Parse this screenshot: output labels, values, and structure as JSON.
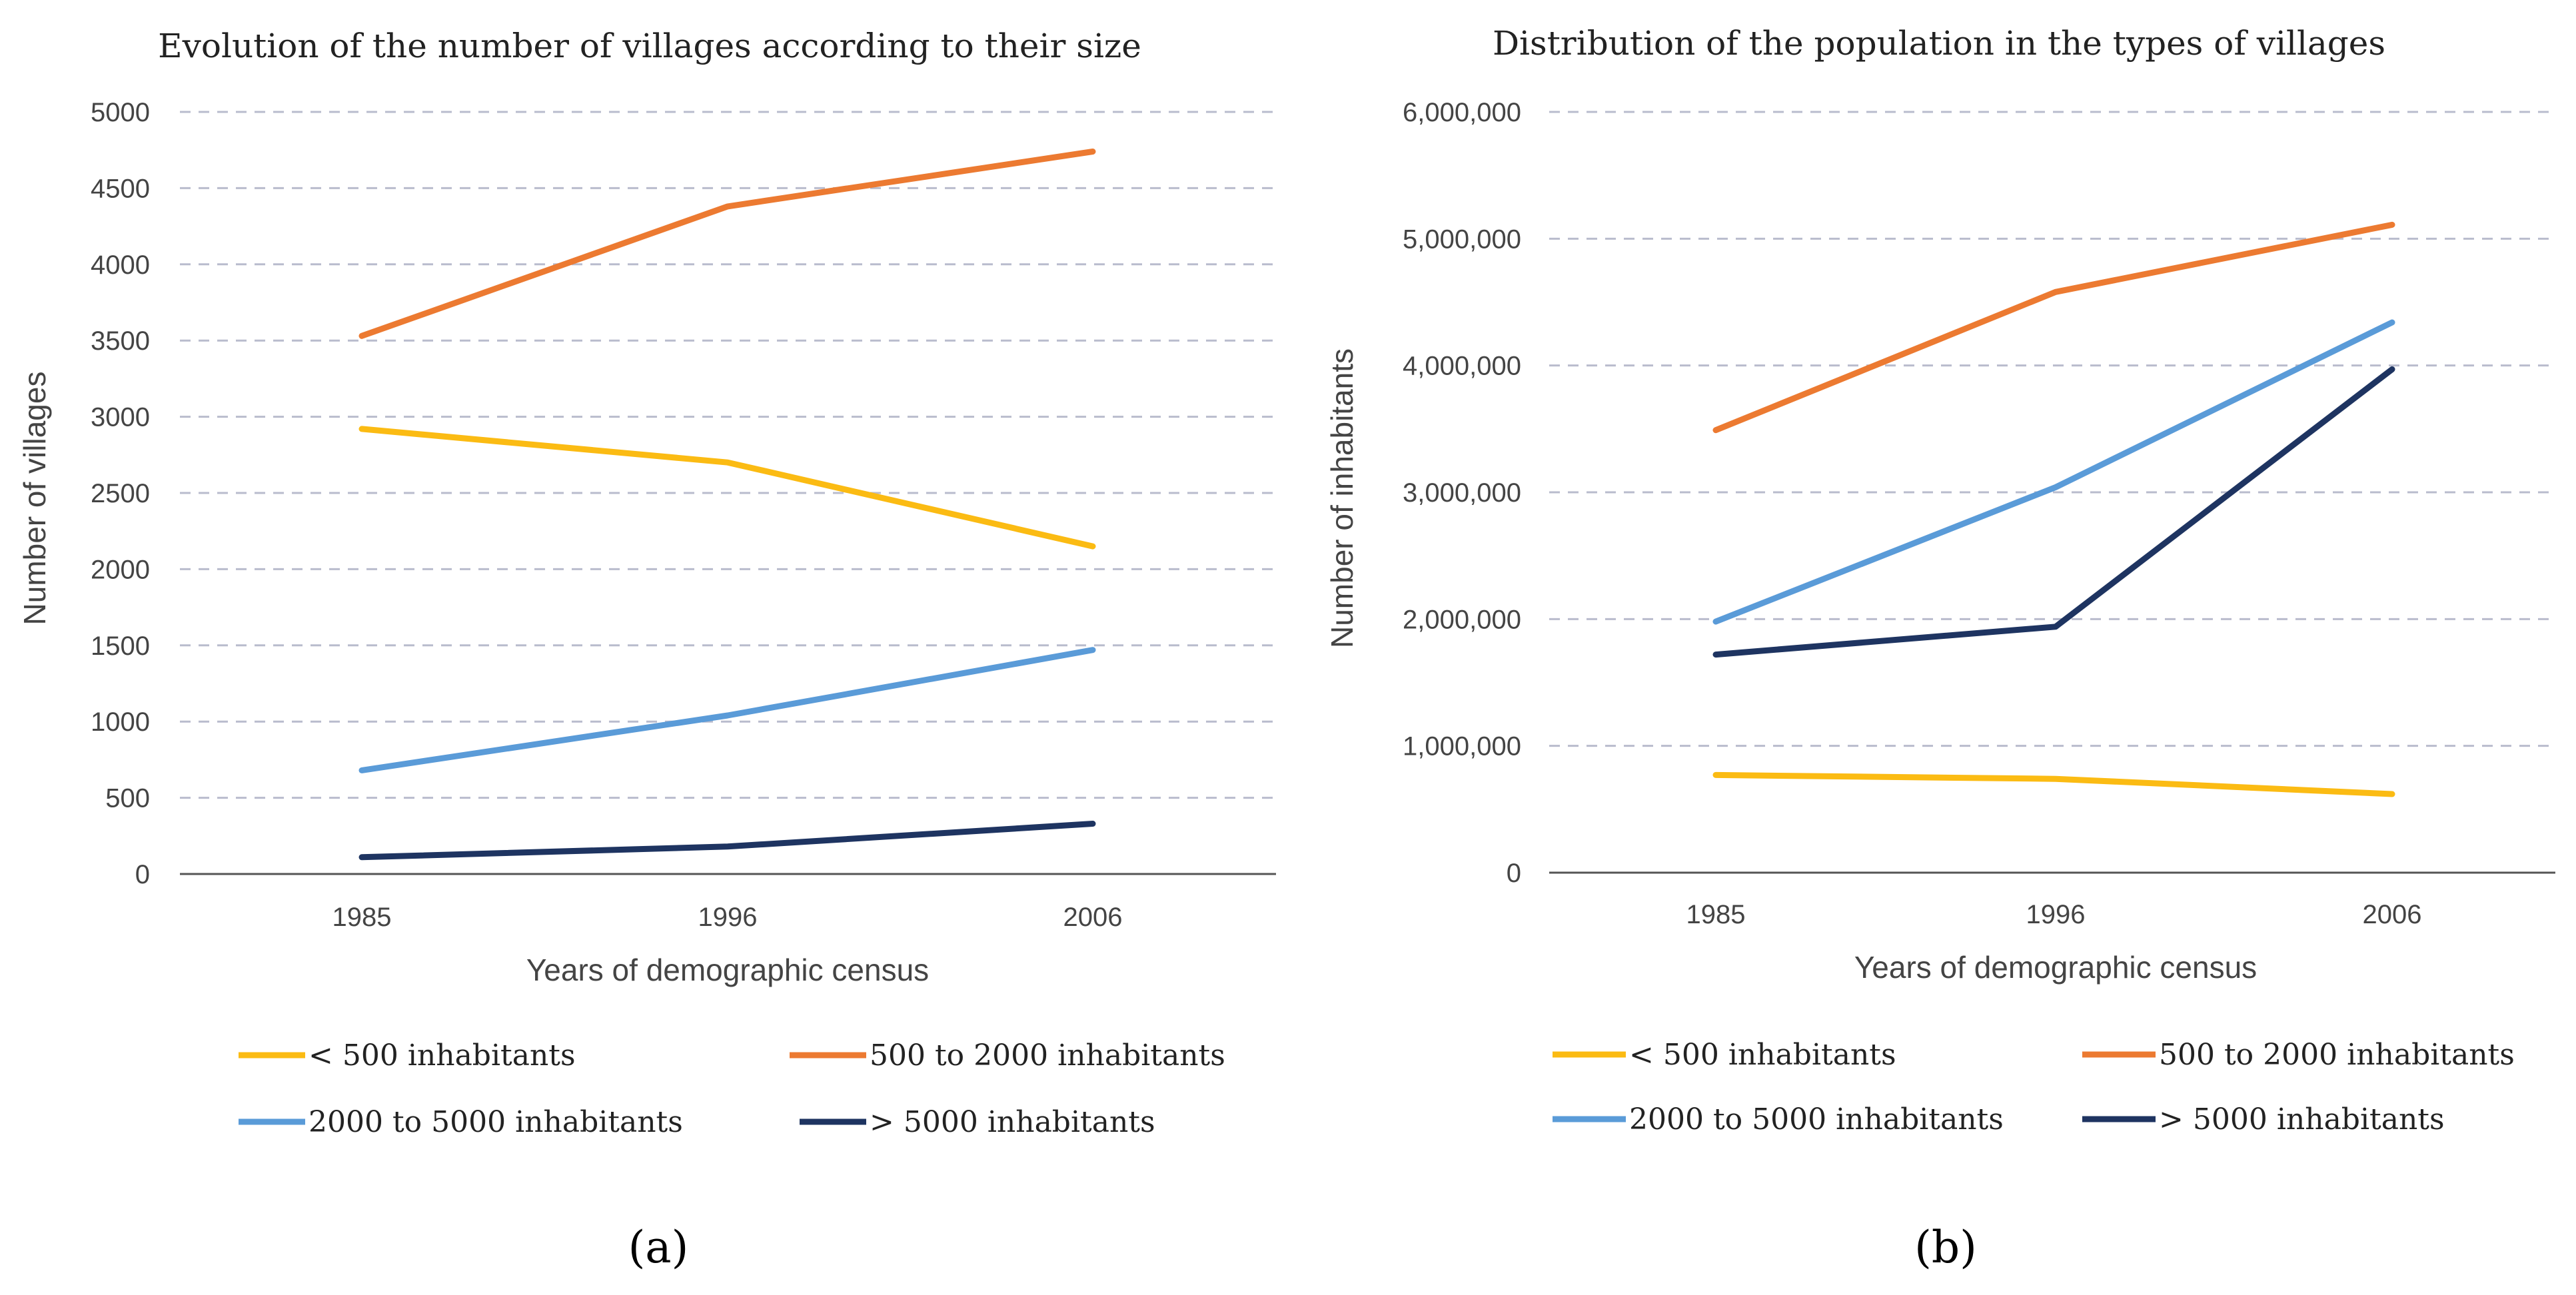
{
  "chart_data": [
    {
      "type": "line",
      "title": "Evolution of the number of villages according to their size",
      "xlabel": "Years of demographic census",
      "ylabel": "Number of villages",
      "categories": [
        "1985",
        "1996",
        "2006"
      ],
      "ylim": [
        0,
        5000
      ],
      "yticks": [
        0,
        500,
        1000,
        1500,
        2000,
        2500,
        3000,
        3500,
        4000,
        4500,
        5000
      ],
      "ytick_labels": [
        "0",
        "500",
        "1000",
        "1500",
        "2000",
        "2500",
        "3000",
        "3500",
        "4000",
        "4500",
        "5000"
      ],
      "series": [
        {
          "name": "< 500 inhabitants",
          "color": "#fbbb13",
          "values": [
            2920,
            2700,
            2150
          ]
        },
        {
          "name": "500 to 2000 inhabitants",
          "color": "#ec7a31",
          "values": [
            3530,
            4380,
            4740
          ]
        },
        {
          "name": "2000 to 5000 inhabitants",
          "color": "#5a9bd8",
          "values": [
            680,
            1040,
            1470
          ]
        },
        {
          "name": "> 5000 inhabitants",
          "color": "#1e3461",
          "values": [
            110,
            180,
            330
          ]
        }
      ],
      "panel_label": "(a)"
    },
    {
      "type": "line",
      "title": "Distribution of the population in the types of villages",
      "xlabel": "Years of demographic census",
      "ylabel": "Number of inhabitants",
      "categories": [
        "1985",
        "1996",
        "2006"
      ],
      "ylim": [
        0,
        6000000
      ],
      "yticks": [
        0,
        1000000,
        2000000,
        3000000,
        4000000,
        5000000,
        6000000
      ],
      "ytick_labels": [
        "0",
        "1,000,000",
        "2,000,000",
        "3,000,000",
        "4,000,000",
        "5,000,000",
        "6,000,000"
      ],
      "series": [
        {
          "name": "< 500 inhabitants",
          "color": "#fbbb13",
          "values": [
            770000,
            740000,
            620000
          ]
        },
        {
          "name": "500 to 2000 inhabitants",
          "color": "#ec7a31",
          "values": [
            3490000,
            4580000,
            5110000
          ]
        },
        {
          "name": "2000 to 5000 inhabitants",
          "color": "#5a9bd8",
          "values": [
            1980000,
            3040000,
            4340000
          ]
        },
        {
          "name": "> 5000 inhabitants",
          "color": "#1e3461",
          "values": [
            1720000,
            1940000,
            3970000
          ]
        }
      ],
      "panel_label": "(b)"
    }
  ]
}
